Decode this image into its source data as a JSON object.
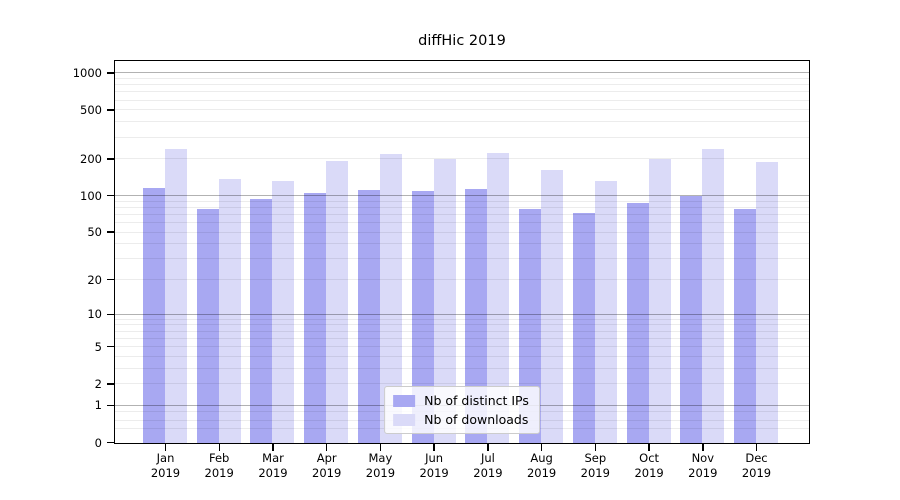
{
  "chart_data": {
    "type": "bar",
    "title": "diffHic 2019",
    "categories": [
      "Jan",
      "Feb",
      "Mar",
      "Apr",
      "May",
      "Jun",
      "Jul",
      "Aug",
      "Sep",
      "Oct",
      "Nov",
      "Dec"
    ],
    "year_label": "2019",
    "series": [
      {
        "name": "Nb of distinct IPs",
        "color": "#a8a8f2",
        "values": [
          117,
          78,
          94,
          106,
          113,
          110,
          114,
          78,
          73,
          88,
          100,
          78
        ]
      },
      {
        "name": "Nb of downloads",
        "color": "#dadaf8",
        "values": [
          242,
          137,
          134,
          195,
          220,
          200,
          223,
          163,
          134,
          200,
          243,
          190
        ]
      }
    ],
    "xlabel": "",
    "ylabel": "",
    "y_ticks": [
      0,
      1,
      2,
      5,
      10,
      20,
      50,
      100,
      200,
      500,
      1000
    ],
    "y_scale": "log10(value+1)",
    "ylim": [
      0,
      1275
    ],
    "legend_position": "lower center",
    "grid": {
      "major_lines": [
        1,
        10,
        100,
        1000
      ],
      "minor_lines": [
        0.3,
        0.5,
        0.8,
        2,
        3,
        4,
        5,
        6,
        7,
        8,
        9,
        20,
        30,
        40,
        50,
        60,
        70,
        80,
        90,
        200,
        300,
        400,
        500,
        600,
        700,
        800,
        900
      ]
    }
  }
}
